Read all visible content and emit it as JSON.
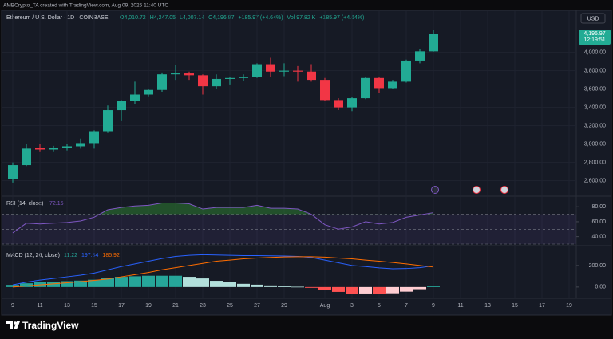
{
  "header": {
    "credit": "AMBCrypto_TA created with TradingView.com, Aug 09, 2025 11:40 UTC",
    "currency": "USD"
  },
  "footer": {
    "brand": "TradingView"
  },
  "chart_data": [
    {
      "type": "candlestick",
      "legend": "Ethereum / U.S. Dollar · 1D · COINBASE",
      "ohlc_labels": [
        "O4,010.72",
        "H4,247.05",
        "L4,007.14",
        "C4,196.97",
        "+185.97 (+4.64%)"
      ],
      "volume_labels": [
        "Vol 97.82 K",
        "+185.97 (+4.64%)"
      ],
      "last_price_label": "4,196.97",
      "countdown": "12:19:51",
      "categories": [
        "9",
        null,
        "11",
        null,
        "13",
        null,
        "15",
        null,
        "17",
        null,
        "19",
        null,
        "21",
        null,
        "23",
        null,
        "25",
        null,
        "27",
        null,
        "29",
        null,
        null,
        "Aug",
        null,
        "3",
        null,
        "5",
        null,
        "7",
        null,
        "9",
        null,
        "11",
        null,
        "13",
        null,
        "15",
        null,
        "17",
        null,
        "19"
      ],
      "open": [
        2615,
        2770,
        2960,
        2940,
        2955,
        2975,
        3010,
        3140,
        3370,
        3470,
        3540,
        3590,
        3760,
        3770,
        3750,
        3630,
        3710,
        3720,
        3735,
        3870,
        3790,
        3800,
        3790,
        3700,
        3480,
        3400,
        3500,
        3720,
        3610,
        3680,
        3910,
        4010.72,
        null,
        null,
        null,
        null,
        null,
        null,
        null,
        null,
        null,
        null
      ],
      "high": [
        2800,
        3000,
        3000,
        2980,
        3000,
        3060,
        3150,
        3420,
        3480,
        3680,
        3600,
        3780,
        3860,
        3790,
        3760,
        3760,
        3730,
        3760,
        3880,
        3940,
        3880,
        3850,
        3870,
        3720,
        3500,
        3510,
        3730,
        3730,
        3700,
        3920,
        4040,
        4247.05,
        null,
        null,
        null,
        null,
        null,
        null,
        null,
        null,
        null,
        null
      ],
      "low": [
        2580,
        2760,
        2920,
        2920,
        2930,
        2950,
        2950,
        3120,
        3250,
        3440,
        3520,
        3570,
        3700,
        3700,
        3540,
        3600,
        3650,
        3690,
        3720,
        3730,
        3740,
        3680,
        3680,
        3470,
        3370,
        3360,
        3490,
        3560,
        3600,
        3670,
        3880,
        4007.14,
        null,
        null,
        null,
        null,
        null,
        null,
        null,
        null,
        null,
        null
      ],
      "close": [
        2770,
        2950,
        2940,
        2955,
        2975,
        3010,
        3140,
        3370,
        3470,
        3540,
        3590,
        3760,
        3770,
        3750,
        3630,
        3710,
        3720,
        3735,
        3870,
        3790,
        3800,
        3790,
        3700,
        3480,
        3400,
        3500,
        3720,
        3610,
        3680,
        3910,
        4010.72,
        4196.97,
        null,
        null,
        null,
        null,
        null,
        null,
        null,
        null,
        null,
        null
      ],
      "up_color": "#22ab94",
      "down_color": "#f23645",
      "ylim": [
        2440,
        4440
      ],
      "yticks": [
        {
          "value": 2600,
          "label": "2,600.00"
        },
        {
          "value": 2800,
          "label": "2,800.00"
        },
        {
          "value": 3000,
          "label": "3,000.00"
        },
        {
          "value": 3200,
          "label": "3,200.00"
        },
        {
          "value": 3400,
          "label": "3,400.00"
        },
        {
          "value": 3600,
          "label": "3,600.00"
        },
        {
          "value": 3800,
          "label": "3,800.00"
        },
        {
          "value": 4000,
          "label": "4,000.00"
        }
      ],
      "grid": true
    },
    {
      "type": "line",
      "title": "RSI (14, close)",
      "value_label": "72.15",
      "color": "#7e57c2",
      "overbought_color": "#2e7d32",
      "values": [
        45,
        58,
        57,
        58,
        59,
        61,
        66,
        76,
        79,
        81,
        82,
        85,
        85,
        84,
        77,
        79,
        79,
        79,
        82,
        78,
        78,
        77,
        70,
        56,
        50,
        53,
        60,
        57,
        59,
        66,
        69,
        72.15,
        null,
        null,
        null,
        null,
        null,
        null,
        null,
        null,
        null,
        null
      ],
      "bands": [
        70,
        50,
        30
      ],
      "ylim": [
        30,
        92
      ],
      "yticks": [
        {
          "value": 40,
          "label": "40.00"
        },
        {
          "value": 60,
          "label": "60.00"
        },
        {
          "value": 80,
          "label": "80.00"
        }
      ]
    },
    {
      "type": "macd",
      "title": "MACD (12, 26, close)",
      "value_labels": [
        "11.22",
        "197.34",
        "185.92"
      ],
      "histogram": [
        20,
        35,
        45,
        50,
        55,
        60,
        68,
        85,
        95,
        100,
        105,
        105,
        105,
        95,
        80,
        58,
        45,
        30,
        22,
        15,
        8,
        3,
        -7,
        -28,
        -45,
        -62,
        -60,
        -62,
        -58,
        -43,
        -20,
        11.22,
        null,
        null,
        null,
        null,
        null,
        null,
        null,
        null,
        null,
        null
      ],
      "macd": [
        20,
        45,
        65,
        80,
        95,
        110,
        130,
        160,
        190,
        215,
        240,
        265,
        285,
        295,
        300,
        298,
        295,
        292,
        292,
        290,
        288,
        285,
        275,
        250,
        225,
        200,
        190,
        178,
        170,
        172,
        180,
        197.34,
        null,
        null,
        null,
        null,
        null,
        null,
        null,
        null,
        null,
        null
      ],
      "signal": [
        0,
        10,
        20,
        30,
        40,
        50,
        62,
        75,
        95,
        115,
        135,
        160,
        180,
        200,
        220,
        240,
        250,
        262,
        270,
        275,
        280,
        282,
        282,
        278,
        270,
        262,
        250,
        240,
        228,
        215,
        200,
        185.92,
        null,
        null,
        null,
        null,
        null,
        null,
        null,
        null,
        null,
        null
      ],
      "histogram_colors": [
        "#26a69a",
        "#b2dfdb",
        "#ff5252",
        "#ffcdd2"
      ],
      "macd_color": "#2962ff",
      "signal_color": "#ff6d00",
      "ylim": [
        -90,
        370
      ],
      "yticks": [
        {
          "value": 0,
          "label": "0.00"
        },
        {
          "value": 200,
          "label": "200.00"
        }
      ]
    }
  ]
}
